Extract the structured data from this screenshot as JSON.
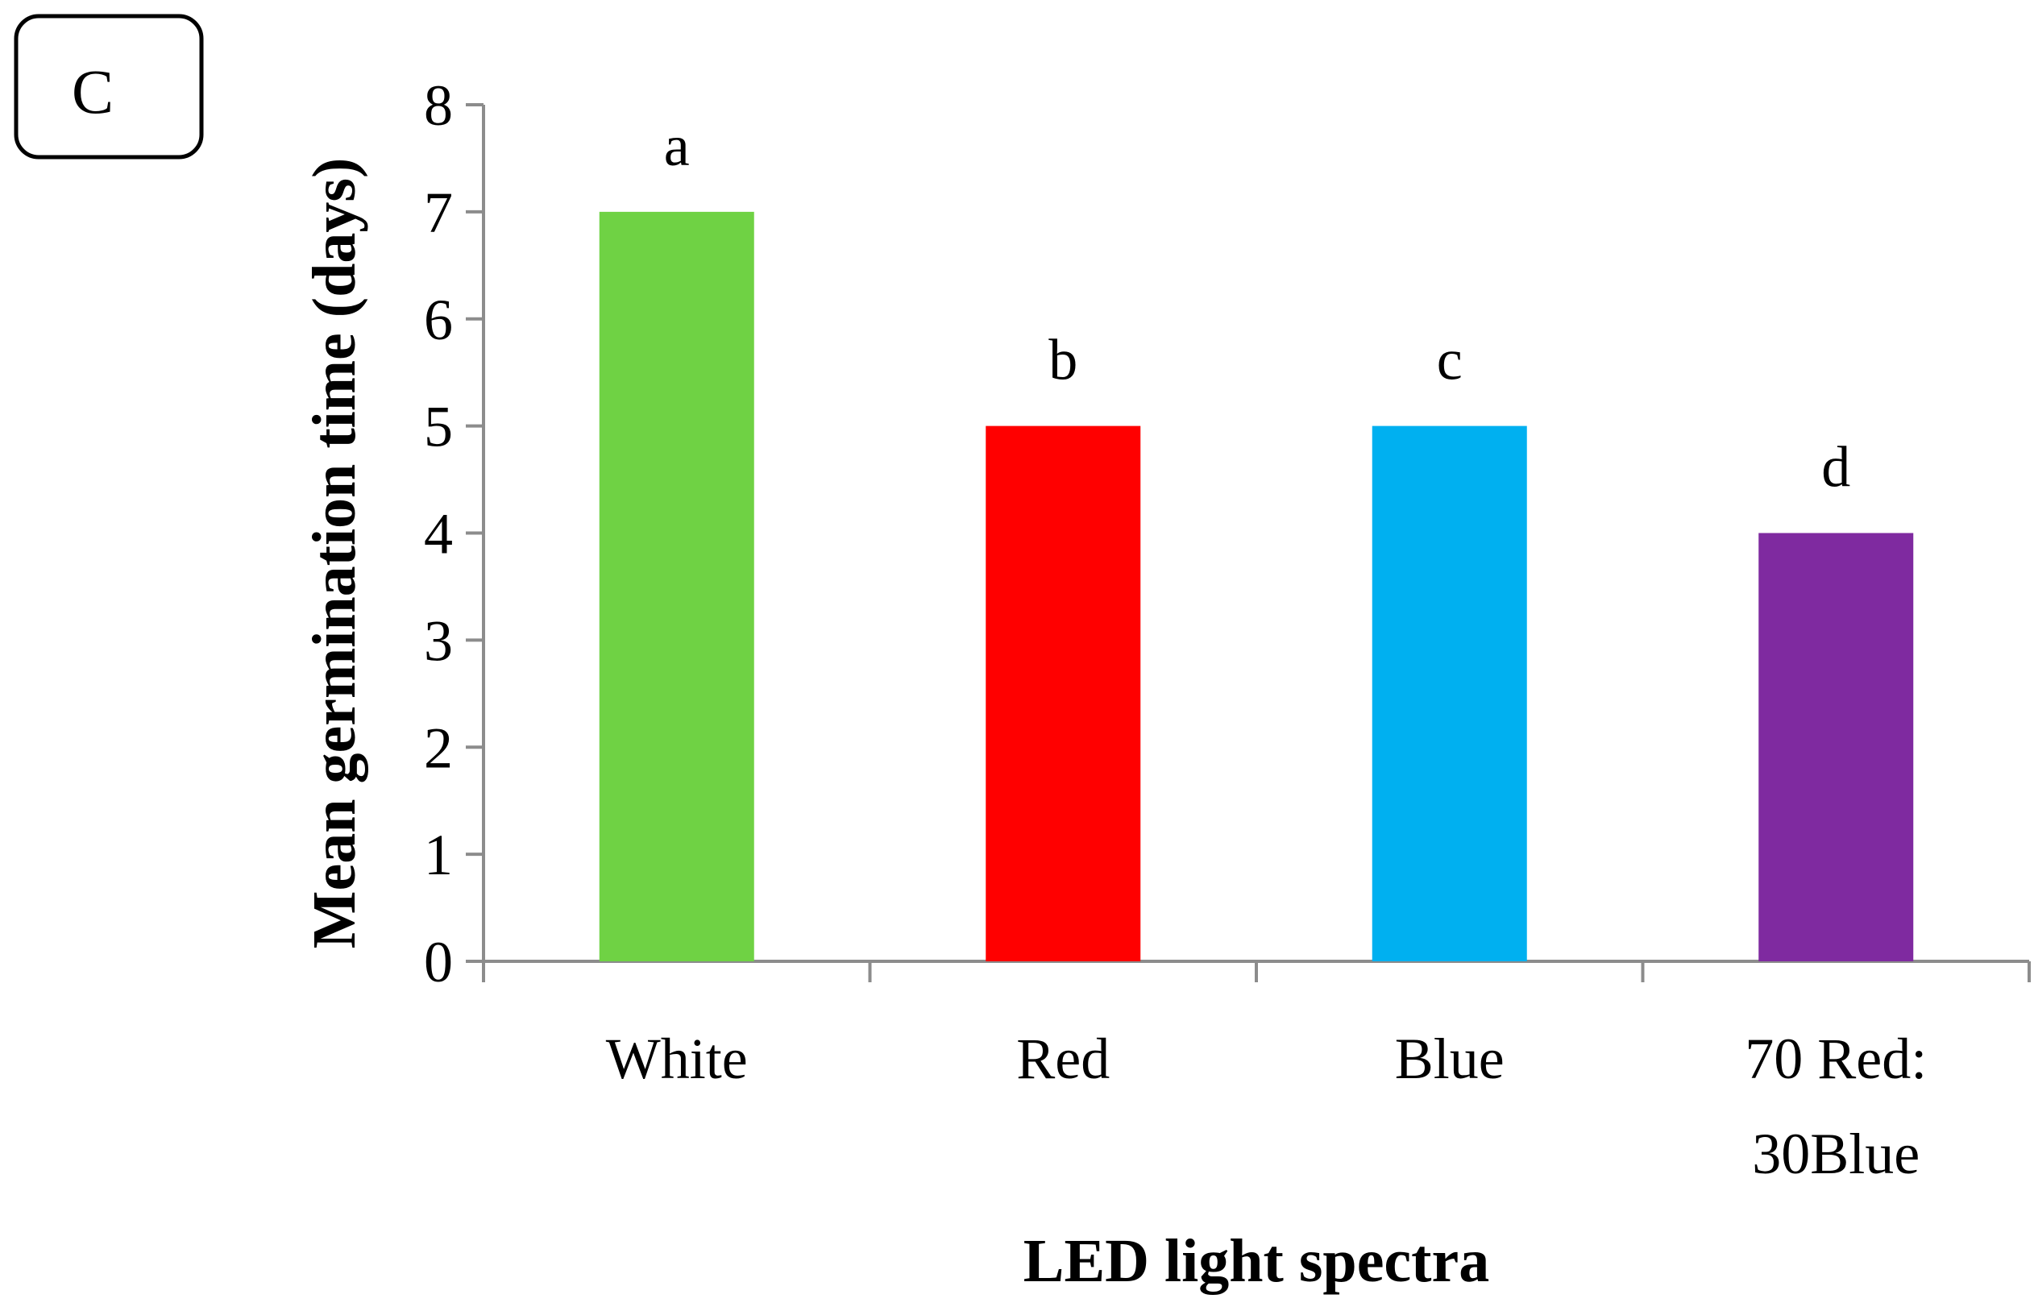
{
  "panel_label": "C",
  "chart_data": {
    "type": "bar",
    "title": "",
    "xlabel": "LED light spectra",
    "ylabel": "Mean germination time (days)",
    "ylim": [
      0,
      8
    ],
    "yticks": [
      0,
      1,
      2,
      3,
      4,
      5,
      6,
      7,
      8
    ],
    "grid": false,
    "legend": "none",
    "categories": [
      [
        "White"
      ],
      [
        "Red"
      ],
      [
        "Blue"
      ],
      [
        "70 Red:",
        "30Blue"
      ]
    ],
    "values": [
      7,
      5,
      5,
      4
    ],
    "significance_letters": [
      "a",
      "b",
      "c",
      "d"
    ],
    "colors": [
      "#6fd244",
      "#ff0000",
      "#00b0f0",
      "#7f2aa0"
    ]
  }
}
